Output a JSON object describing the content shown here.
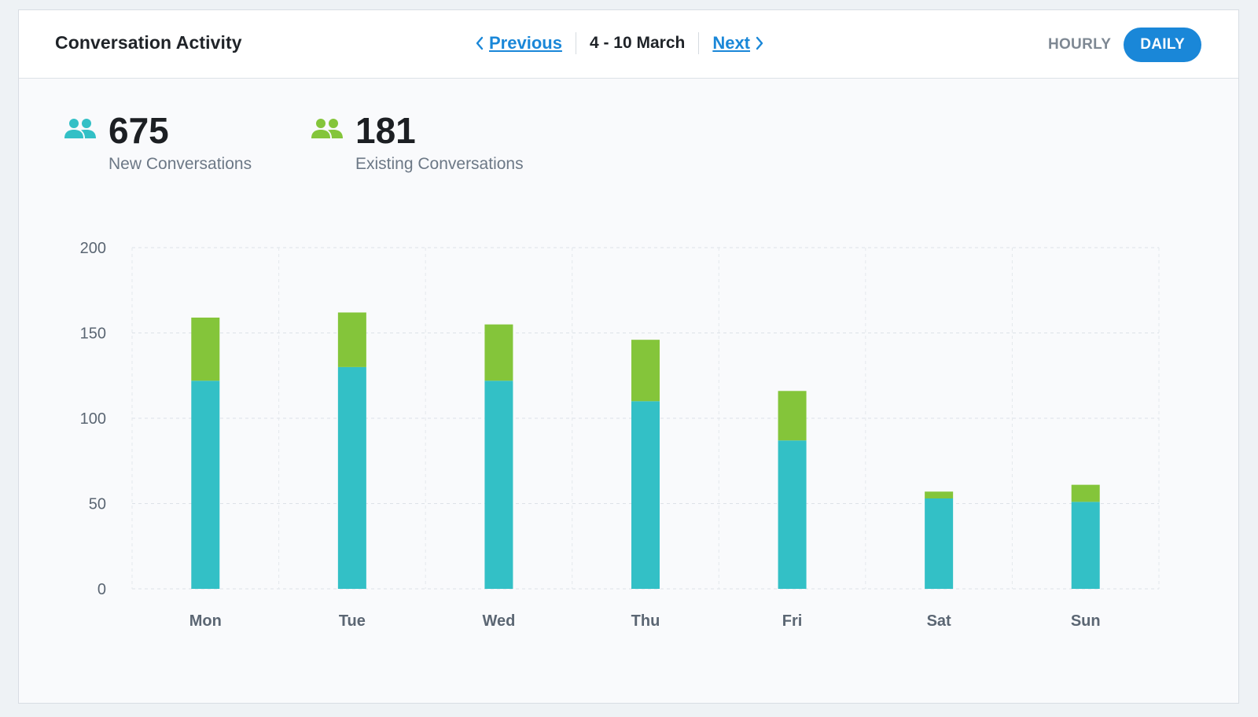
{
  "header": {
    "title": "Conversation Activity",
    "prev_label": "Previous",
    "range_label": "4 - 10 March",
    "next_label": "Next",
    "toggle_hourly": "HOURLY",
    "toggle_daily": "DAILY",
    "active_toggle": "DAILY"
  },
  "stats": {
    "new": {
      "value": "675",
      "label": "New Conversations",
      "icon": "users-icon",
      "color": "#33c0c6"
    },
    "existing": {
      "value": "181",
      "label": "Existing Conversations",
      "icon": "users-icon",
      "color": "#84c53a"
    }
  },
  "colors": {
    "accent": "#1a87d8",
    "new_series": "#33c0c6",
    "existing_series": "#84c53a"
  },
  "chart_data": {
    "type": "bar",
    "stacked": true,
    "categories": [
      "Mon",
      "Tue",
      "Wed",
      "Thu",
      "Fri",
      "Sat",
      "Sun"
    ],
    "series": [
      {
        "values": [
          122,
          130,
          122,
          110,
          87,
          53,
          51
        ],
        "color": "#33c0c6"
      },
      {
        "values": [
          37,
          32,
          33,
          36,
          29,
          4,
          10
        ],
        "color": "#84c53a"
      }
    ],
    "y_ticks": [
      0,
      50,
      100,
      150,
      200
    ],
    "ylim": [
      0,
      200
    ],
    "grid": true,
    "title": "",
    "xlabel": "",
    "ylabel": ""
  }
}
